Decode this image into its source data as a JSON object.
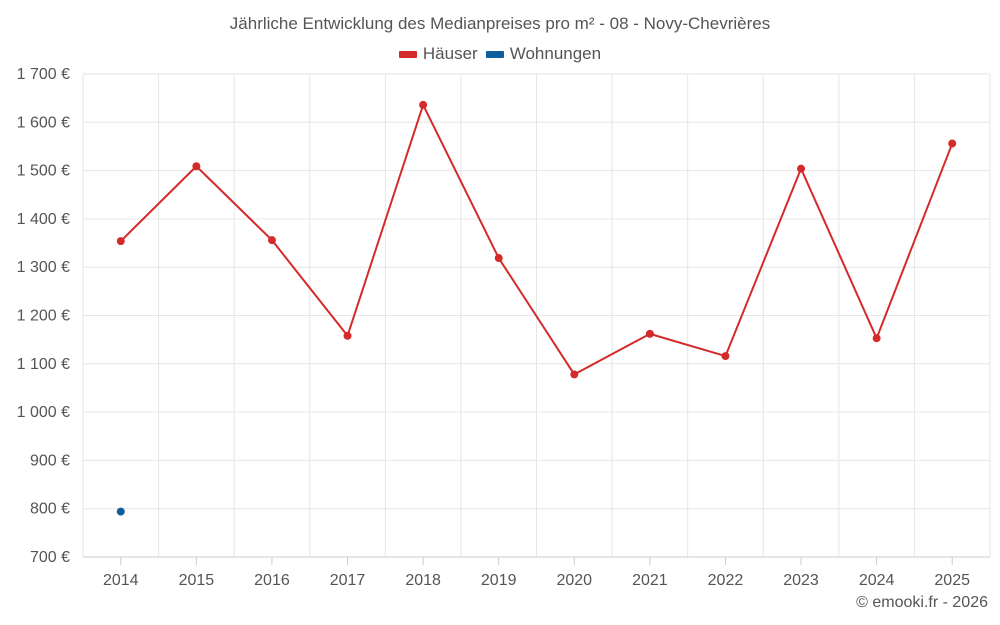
{
  "chart_data": {
    "type": "line",
    "title": "Jährliche Entwicklung des Medianpreises pro m² - 08 - Novy-Chevrières",
    "xlabel": "",
    "ylabel": "",
    "categories": [
      "2014",
      "2015",
      "2016",
      "2017",
      "2018",
      "2019",
      "2020",
      "2021",
      "2022",
      "2023",
      "2024",
      "2025"
    ],
    "ylim": [
      700,
      1700
    ],
    "yticks": [
      700,
      800,
      900,
      1000,
      1100,
      1200,
      1300,
      1400,
      1500,
      1600,
      1700
    ],
    "ytick_labels": [
      "700 €",
      "800 €",
      "900 €",
      "1 000 €",
      "1 100 €",
      "1 200 €",
      "1 300 €",
      "1 400 €",
      "1 500 €",
      "1 600 €",
      "1 700 €"
    ],
    "grid": true,
    "legend_position": "top-center",
    "series": [
      {
        "name": "Häuser",
        "color": "#d42a2a",
        "values": [
          1354,
          1509,
          1356,
          1158,
          1636,
          1319,
          1078,
          1162,
          1116,
          1504,
          1153,
          1556
        ]
      },
      {
        "name": "Wohnungen",
        "color": "#0f5e9c",
        "values": [
          794,
          null,
          null,
          null,
          null,
          null,
          null,
          null,
          null,
          null,
          null,
          null
        ]
      }
    ]
  },
  "footer": {
    "copyright": "© emooki.fr - 2026"
  }
}
